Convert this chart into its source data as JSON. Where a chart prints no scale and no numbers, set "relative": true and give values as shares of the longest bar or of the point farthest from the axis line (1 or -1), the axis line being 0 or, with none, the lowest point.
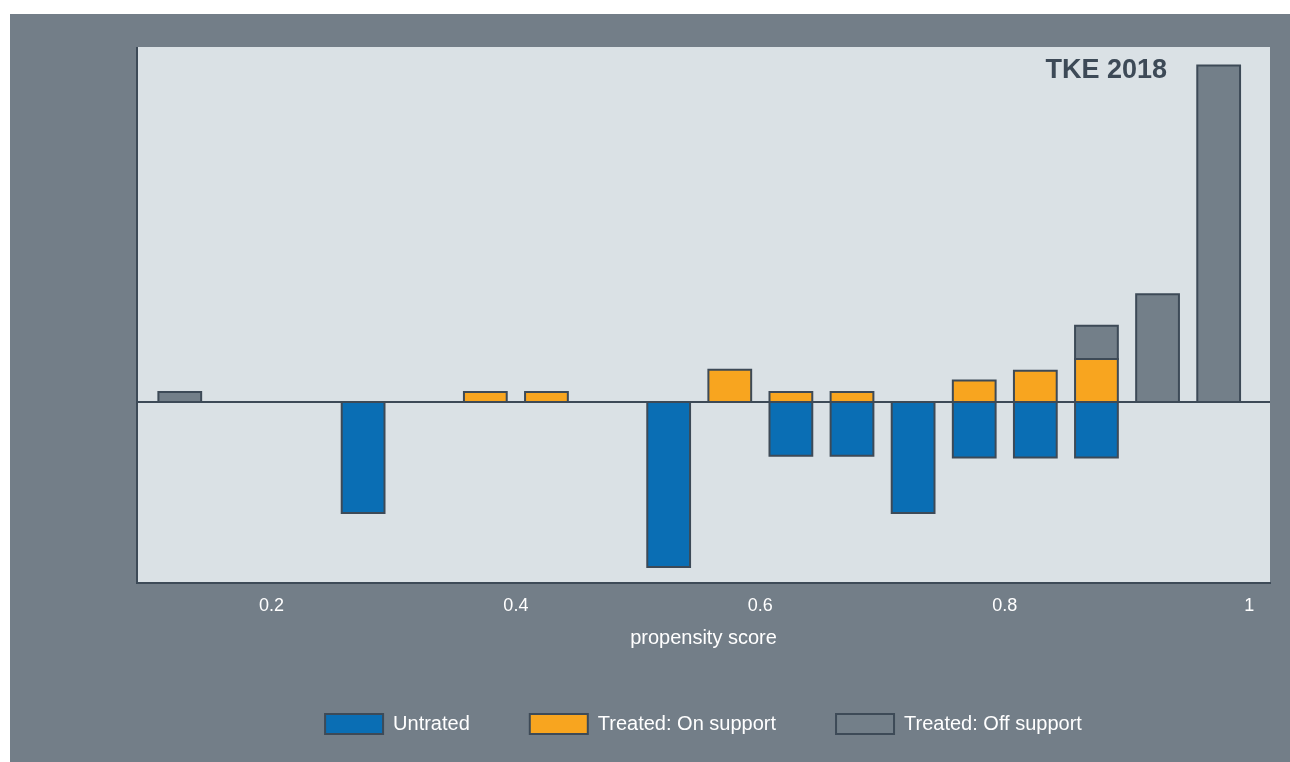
{
  "chart_data": {
    "type": "bar",
    "title": "TKE 2018",
    "xlabel": "propensity score",
    "relative": true,
    "stacked": true,
    "legend": "bottom",
    "grid": false,
    "x": [
      0.125,
      0.275,
      0.375,
      0.425,
      0.525,
      0.575,
      0.625,
      0.675,
      0.725,
      0.775,
      0.825,
      0.875,
      0.925,
      0.975
    ],
    "xlim": [
      0.09,
      1.017
    ],
    "xticks": [
      0.2,
      0.4,
      0.6,
      0.8,
      1
    ],
    "series": [
      {
        "name": "Untrated",
        "color": "#0a6eb4",
        "values": [
          null,
          -0.33,
          null,
          null,
          -0.49,
          null,
          -0.16,
          -0.16,
          -0.33,
          -0.165,
          -0.165,
          -0.165,
          null,
          null
        ]
      },
      {
        "name": "Treated: On support",
        "color": "#f8a51f",
        "values": [
          null,
          null,
          0.03,
          0.03,
          null,
          0.096,
          0.03,
          0.03,
          null,
          0.064,
          0.093,
          0.128,
          null,
          null
        ]
      },
      {
        "name": "Treated: Off support",
        "color": "#737f89",
        "values": [
          0.03,
          null,
          null,
          null,
          null,
          null,
          null,
          null,
          null,
          null,
          null,
          0.099,
          0.32,
          1
        ]
      }
    ]
  }
}
